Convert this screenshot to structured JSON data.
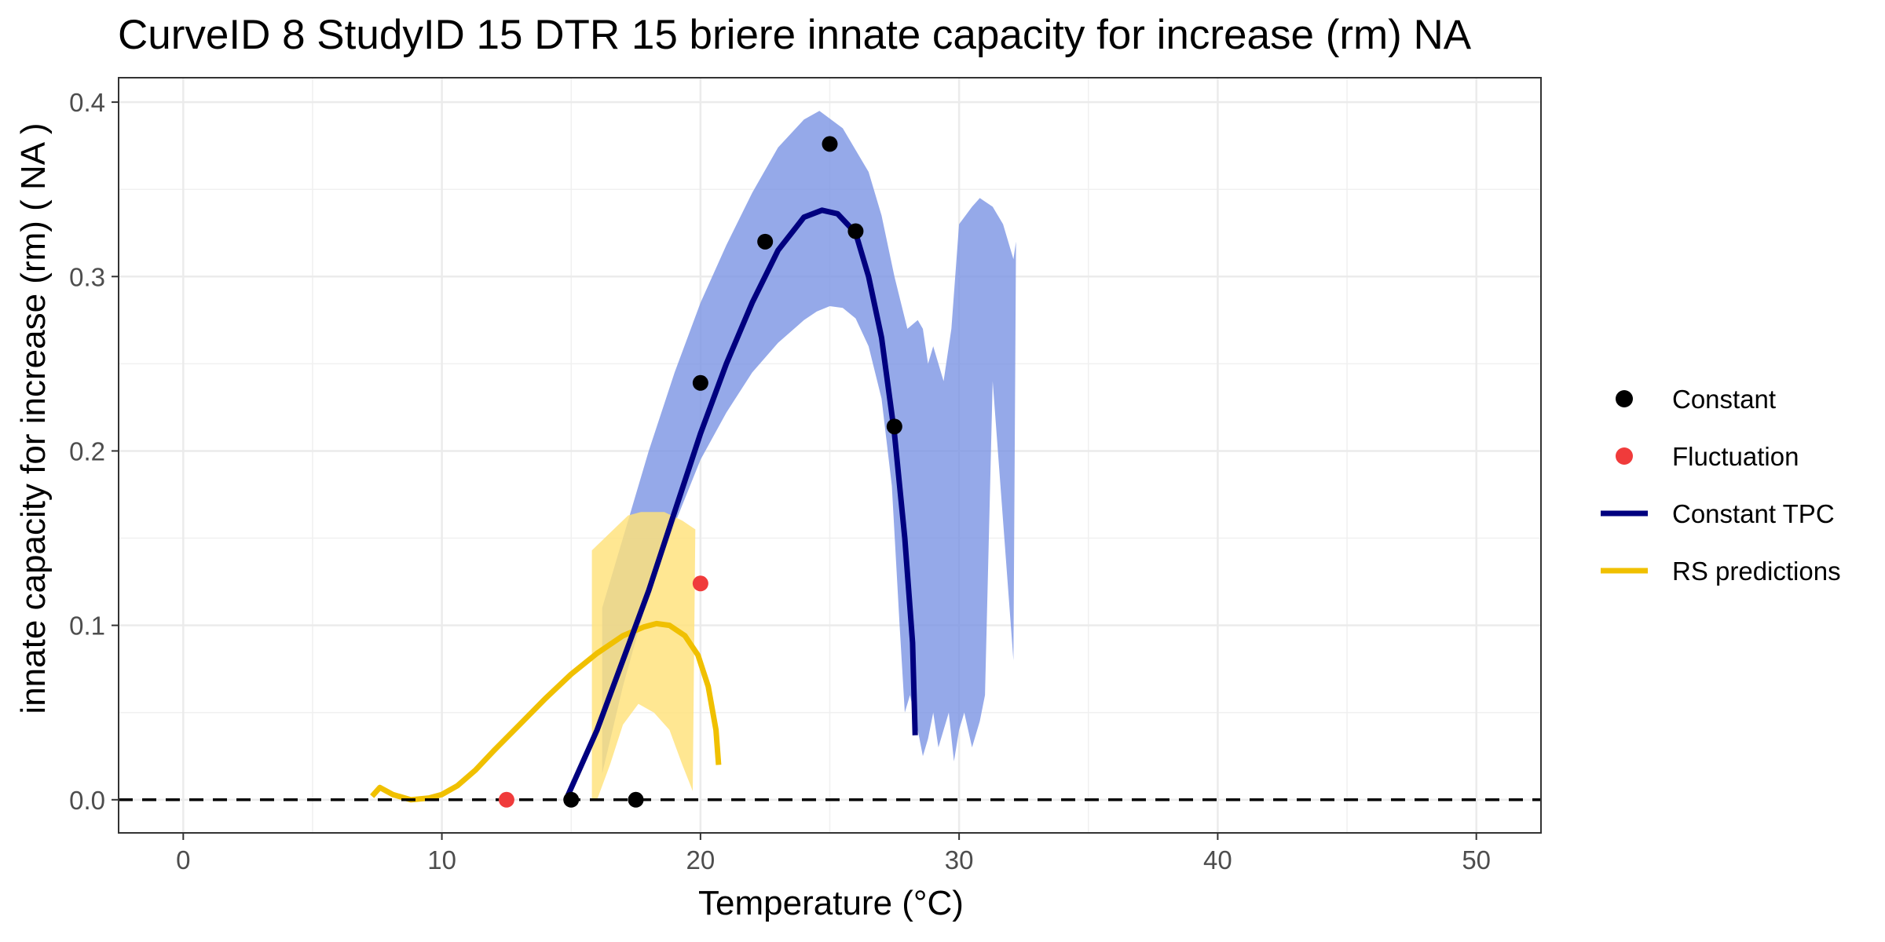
{
  "chart_data": {
    "type": "scatter",
    "title": "CurveID 8 StudyID 15 DTR 15 briere innate capacity for increase (rm) NA",
    "xlabel": "Temperature (°C)",
    "ylabel": "innate capacity for increase (rm) ( NA )",
    "xlim": [
      -2.5,
      52.5
    ],
    "ylim": [
      -0.019,
      0.414
    ],
    "x_ticks": [
      0,
      10,
      20,
      30,
      40,
      50
    ],
    "y_ticks": [
      0.0,
      0.1,
      0.2,
      0.3,
      0.4
    ],
    "x_tick_labels": [
      "0",
      "10",
      "20",
      "30",
      "40",
      "50"
    ],
    "y_tick_labels": [
      "0.0",
      "0.1",
      "0.2",
      "0.3",
      "0.4"
    ],
    "grid": true,
    "legend_position": "right",
    "reference_line": {
      "y": 0,
      "style": "dashed",
      "color": "#000000"
    },
    "series": [
      {
        "name": "Constant",
        "kind": "points",
        "color": "#000000",
        "points": [
          [
            15,
            0.0
          ],
          [
            17.5,
            0.0
          ],
          [
            20,
            0.239
          ],
          [
            22.5,
            0.32
          ],
          [
            25,
            0.376
          ],
          [
            26,
            0.326
          ],
          [
            27.5,
            0.214
          ]
        ]
      },
      {
        "name": "Fluctuation",
        "kind": "points",
        "color": "#f03b3b",
        "points": [
          [
            12.5,
            0.0
          ],
          [
            20,
            0.124
          ]
        ]
      },
      {
        "name": "Constant TPC",
        "kind": "line",
        "color": "#00007f",
        "band_color": "#7b93e3",
        "points": [
          [
            14.8,
            0.0
          ],
          [
            16,
            0.04
          ],
          [
            17,
            0.08
          ],
          [
            18,
            0.12
          ],
          [
            19,
            0.165
          ],
          [
            20,
            0.21
          ],
          [
            21,
            0.25
          ],
          [
            22,
            0.285
          ],
          [
            23,
            0.315
          ],
          [
            24,
            0.334
          ],
          [
            24.7,
            0.338
          ],
          [
            25.3,
            0.336
          ],
          [
            26,
            0.325
          ],
          [
            26.5,
            0.3
          ],
          [
            27,
            0.265
          ],
          [
            27.5,
            0.21
          ],
          [
            27.9,
            0.15
          ],
          [
            28.2,
            0.09
          ],
          [
            28.3,
            0.037
          ]
        ],
        "band_upper": [
          [
            16.2,
            0.11
          ],
          [
            17,
            0.15
          ],
          [
            18,
            0.2
          ],
          [
            19,
            0.245
          ],
          [
            20,
            0.285
          ],
          [
            21,
            0.318
          ],
          [
            22,
            0.348
          ],
          [
            23,
            0.374
          ],
          [
            24,
            0.39
          ],
          [
            24.6,
            0.395
          ],
          [
            25.5,
            0.385
          ],
          [
            26.5,
            0.36
          ],
          [
            27,
            0.335
          ],
          [
            27.5,
            0.3
          ],
          [
            28,
            0.27
          ],
          [
            28.4,
            0.275
          ],
          [
            28.6,
            0.27
          ],
          [
            28.8,
            0.25
          ],
          [
            29,
            0.26
          ],
          [
            29.4,
            0.24
          ],
          [
            29.7,
            0.27
          ],
          [
            30,
            0.33
          ],
          [
            30.5,
            0.34
          ],
          [
            30.8,
            0.345
          ],
          [
            31.3,
            0.34
          ],
          [
            31.7,
            0.33
          ],
          [
            32.1,
            0.31
          ],
          [
            32.2,
            0.32
          ]
        ],
        "band_lower": [
          [
            32.2,
            0.32
          ],
          [
            32.1,
            0.08
          ],
          [
            31.6,
            0.18
          ],
          [
            31.3,
            0.24
          ],
          [
            31,
            0.06
          ],
          [
            30.8,
            0.045
          ],
          [
            30.5,
            0.03
          ],
          [
            30.2,
            0.05
          ],
          [
            30.0,
            0.04
          ],
          [
            29.8,
            0.022
          ],
          [
            29.6,
            0.05
          ],
          [
            29.4,
            0.04
          ],
          [
            29.2,
            0.03
          ],
          [
            29,
            0.05
          ],
          [
            28.8,
            0.035
          ],
          [
            28.6,
            0.025
          ],
          [
            28.4,
            0.04
          ],
          [
            28.1,
            0.06
          ],
          [
            27.9,
            0.05
          ],
          [
            27.7,
            0.1
          ],
          [
            27.4,
            0.18
          ],
          [
            27,
            0.23
          ],
          [
            26.5,
            0.26
          ],
          [
            26,
            0.276
          ],
          [
            25.5,
            0.282
          ],
          [
            25,
            0.283
          ],
          [
            24.5,
            0.28
          ],
          [
            24,
            0.275
          ],
          [
            23,
            0.262
          ],
          [
            22,
            0.245
          ],
          [
            21,
            0.222
          ],
          [
            20,
            0.195
          ],
          [
            19,
            0.158
          ],
          [
            18,
            0.118
          ],
          [
            17,
            0.065
          ],
          [
            16.2,
            0.015
          ]
        ]
      },
      {
        "name": "RS predictions",
        "kind": "line",
        "color": "#f0c000",
        "band_color": "#ffe27a",
        "points": [
          [
            7.3,
            0.002
          ],
          [
            7.6,
            0.007
          ],
          [
            8.1,
            0.003
          ],
          [
            8.8,
            0.0
          ],
          [
            9.5,
            0.001
          ],
          [
            10,
            0.003
          ],
          [
            10.6,
            0.008
          ],
          [
            11.3,
            0.017
          ],
          [
            12,
            0.028
          ],
          [
            13,
            0.043
          ],
          [
            14,
            0.058
          ],
          [
            15,
            0.072
          ],
          [
            16,
            0.084
          ],
          [
            17,
            0.094
          ],
          [
            17.8,
            0.099
          ],
          [
            18.3,
            0.101
          ],
          [
            18.8,
            0.1
          ],
          [
            19.4,
            0.094
          ],
          [
            19.9,
            0.083
          ],
          [
            20.3,
            0.065
          ],
          [
            20.6,
            0.04
          ],
          [
            20.7,
            0.02
          ]
        ],
        "band_upper": [
          [
            15.8,
            0.143
          ],
          [
            16.5,
            0.153
          ],
          [
            17.2,
            0.163
          ],
          [
            17.7,
            0.165
          ],
          [
            18.6,
            0.165
          ],
          [
            19.3,
            0.16
          ],
          [
            19.8,
            0.155
          ]
        ],
        "band_lower": [
          [
            19.8,
            0.155
          ],
          [
            19.7,
            0.005
          ],
          [
            19.3,
            0.02
          ],
          [
            18.8,
            0.04
          ],
          [
            18.2,
            0.05
          ],
          [
            17.6,
            0.055
          ],
          [
            17.0,
            0.043
          ],
          [
            16.5,
            0.02
          ],
          [
            16.0,
            0.0
          ],
          [
            15.8,
            0.0
          ]
        ]
      }
    ]
  }
}
